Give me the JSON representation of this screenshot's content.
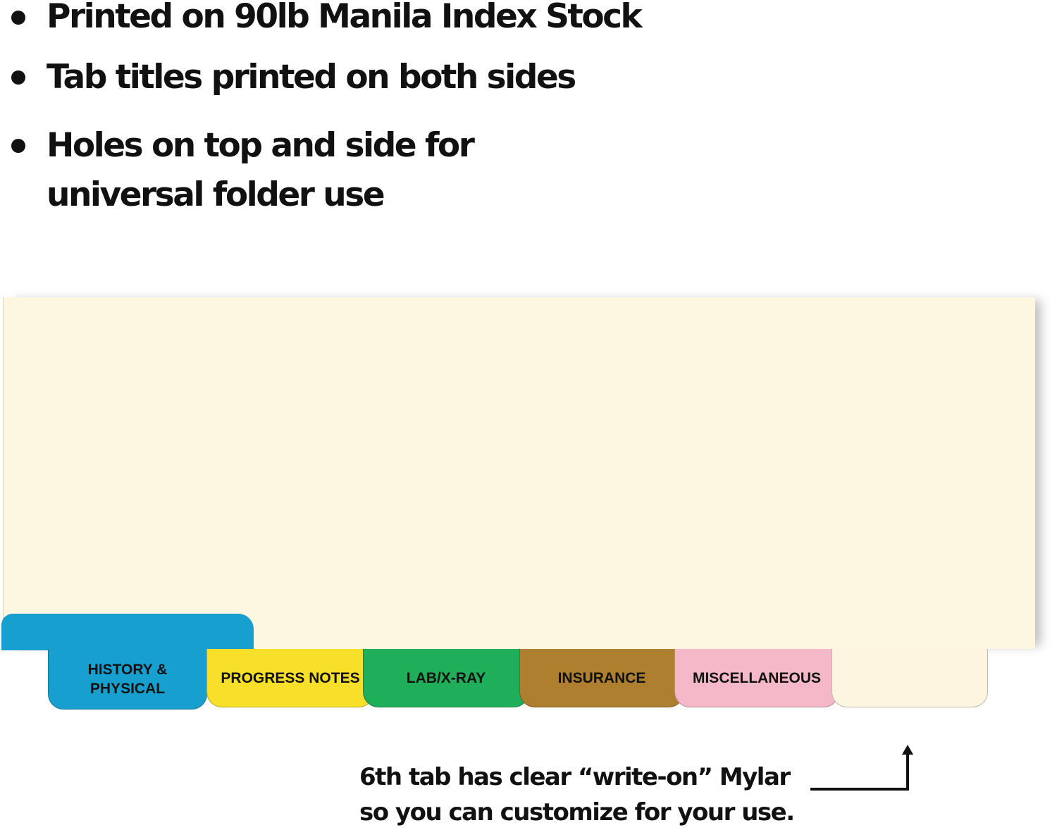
{
  "bullets": [
    "Printed on 90lb Manila Index Stock",
    "Tab titles printed on both sides",
    "Holes on top and side for",
    "universal folder use"
  ],
  "tabs": [
    {
      "line1": "HISTORY &",
      "line2": "PHYSICAL",
      "color": "#17a0cf"
    },
    {
      "label": "PROGRESS NOTES",
      "color": "#f8e02a"
    },
    {
      "label": "LAB/X-RAY",
      "color": "#1faf5a"
    },
    {
      "label": "INSURANCE",
      "color": "#ad7f2f"
    },
    {
      "label": "MISCELLANEOUS",
      "color": "#f4b8c8"
    },
    {
      "label": "",
      "color": "#fdf5e0"
    }
  ],
  "sheet_color": "#fdf6e0",
  "caption": {
    "line1": "6th tab has clear “write-on” Mylar",
    "line2": "so you can customize for your use."
  }
}
